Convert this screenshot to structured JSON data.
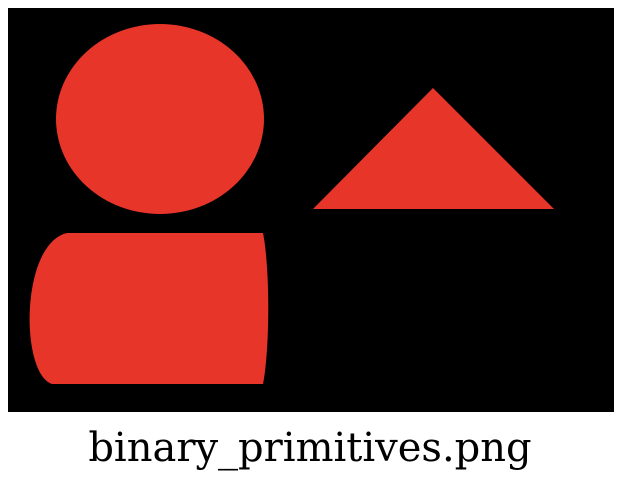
{
  "image": {
    "background_color": "#000000",
    "shape_color": "#e8352a",
    "shapes": [
      "circle",
      "triangle",
      "rounded-rectangle"
    ]
  },
  "caption": {
    "text": "binary_primitives.png"
  }
}
